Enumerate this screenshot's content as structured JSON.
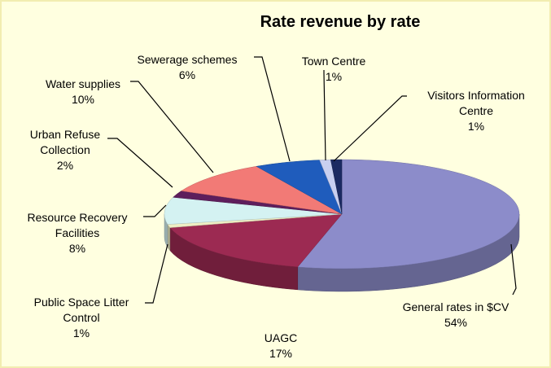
{
  "chart_data": {
    "type": "pie",
    "title": "Rate revenue by rate",
    "categories": [
      "General rates in $CV",
      "UAGC",
      "Public Space Litter Control",
      "Resource Recovery Facilities",
      "Urban Refuse Collection",
      "Water supplies",
      "Sewerage schemes",
      "Town Centre",
      "Visitors Information Centre"
    ],
    "values": [
      54,
      17,
      1,
      8,
      2,
      10,
      6,
      1,
      1
    ],
    "value_labels": [
      "54%",
      "17%",
      "1%",
      "8%",
      "2%",
      "10%",
      "6%",
      "1%",
      "1%"
    ],
    "colors": [
      "#8c8cca",
      "#9c2a52",
      "#eeeec4",
      "#d4f2f2",
      "#5e1e5c",
      "#f27a76",
      "#1f5cbc",
      "#c8cff0",
      "#1b2a62"
    ]
  }
}
